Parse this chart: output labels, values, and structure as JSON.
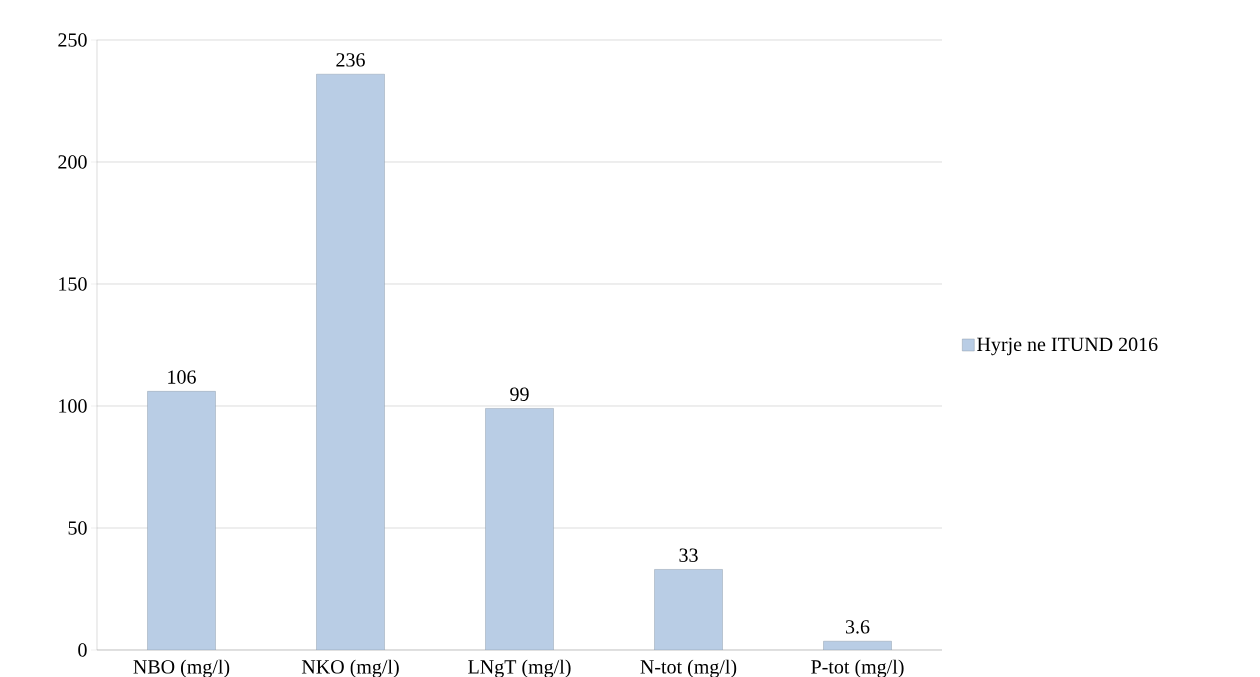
{
  "chart_data": {
    "type": "bar",
    "categories": [
      "NBO (mg/l)",
      "NKO (mg/l)",
      "LNgT (mg/l)",
      "N-tot (mg/l)",
      "P-tot (mg/l)"
    ],
    "series": [
      {
        "name": "Hyrje ne ITUND 2016",
        "color": "#b9cde5",
        "values": [
          106,
          236,
          99,
          33,
          3.6
        ]
      }
    ],
    "ylim": [
      0,
      250
    ],
    "yticks": [
      0,
      50,
      100,
      150,
      200,
      250
    ],
    "grid": "y",
    "legend": "right",
    "data_labels": true
  }
}
